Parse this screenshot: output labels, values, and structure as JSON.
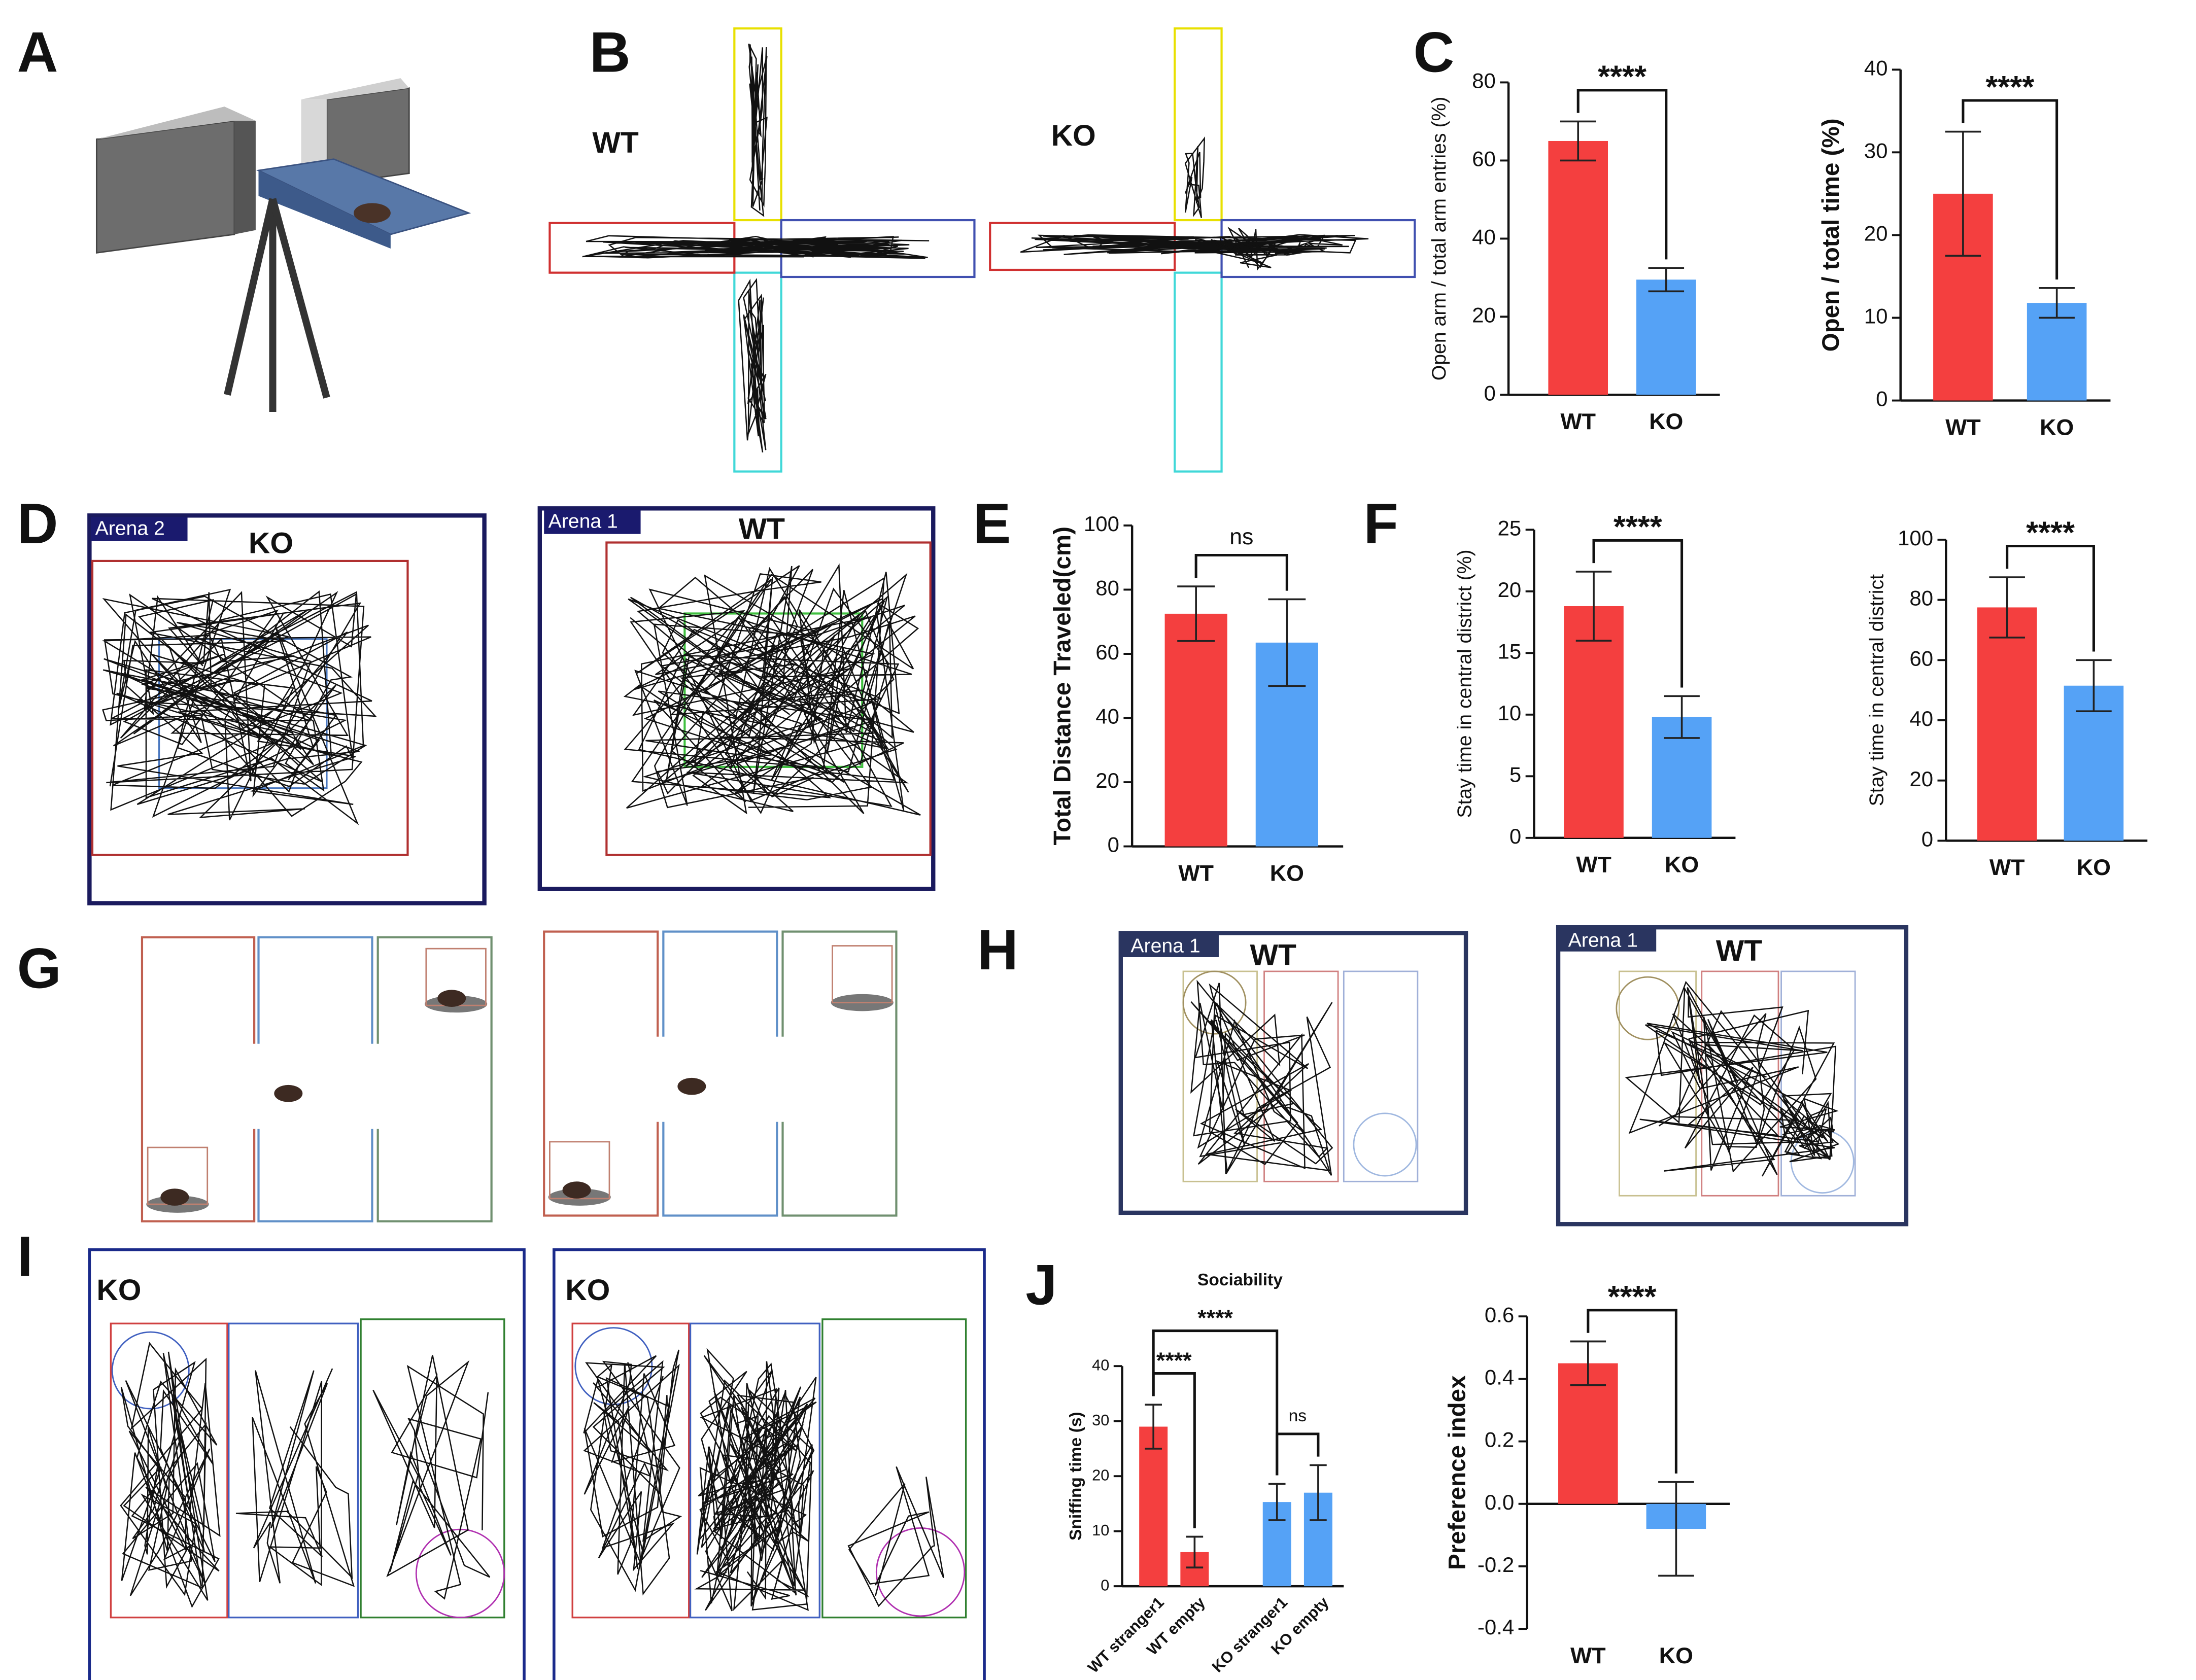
{
  "figure": {
    "letters": [
      "A",
      "B",
      "C",
      "D",
      "E",
      "F",
      "G",
      "H",
      "I",
      "J"
    ],
    "labels": [
      "WT",
      "KO",
      "Arena 2",
      "KO",
      "Arena 1",
      "WT",
      "Arena 1",
      "WT",
      "Arena 1",
      "WT",
      "KO",
      "KO"
    ]
  },
  "chart_data": [
    {
      "type": "bar",
      "y_label": "Open arm / total arm entries (%)",
      "categories": [
        "WT",
        "KO"
      ],
      "values": [
        65,
        29.5
      ],
      "errors": [
        5,
        3
      ],
      "colors": [
        "#f43f3f",
        "#55a2f6"
      ],
      "ylim": [
        0,
        80
      ],
      "yticks": [
        0,
        20,
        40,
        60,
        80
      ],
      "significance": [
        {
          "label": "****",
          "pair": [
            "WT",
            "KO"
          ]
        }
      ]
    },
    {
      "type": "bar",
      "y_label": "Open / total time (%)",
      "categories": [
        "WT",
        "KO"
      ],
      "values": [
        25,
        11.8
      ],
      "errors": [
        7.5,
        1.8
      ],
      "colors": [
        "#f43f3f",
        "#55a2f6"
      ],
      "ylim": [
        0,
        40
      ],
      "yticks": [
        0,
        10,
        20,
        30,
        40
      ],
      "significance": [
        {
          "label": "****",
          "pair": [
            "WT",
            "KO"
          ]
        }
      ]
    },
    {
      "type": "bar",
      "y_label": "Total Distance Traveled(cm)",
      "categories": [
        "WT",
        "KO"
      ],
      "values": [
        72.5,
        63.5
      ],
      "errors": [
        8.5,
        13.5
      ],
      "colors": [
        "#f43f3f",
        "#55a2f6"
      ],
      "ylim": [
        0,
        100
      ],
      "yticks": [
        0,
        20,
        40,
        60,
        80,
        100
      ],
      "significance": [
        {
          "label": "ns",
          "pair": [
            "WT",
            "KO"
          ]
        }
      ]
    },
    {
      "type": "bar",
      "y_label": "Stay time in central district (%)",
      "categories": [
        "WT",
        "KO"
      ],
      "values": [
        18.8,
        9.8
      ],
      "errors": [
        2.8,
        1.7
      ],
      "colors": [
        "#f43f3f",
        "#55a2f6"
      ],
      "ylim": [
        0,
        25
      ],
      "yticks": [
        0,
        5,
        10,
        15,
        20,
        25
      ],
      "significance": [
        {
          "label": "****",
          "pair": [
            "WT",
            "KO"
          ]
        }
      ]
    },
    {
      "type": "bar",
      "y_label": "Stay time in central district",
      "categories": [
        "WT",
        "KO"
      ],
      "values": [
        77.5,
        51.5
      ],
      "errors": [
        10,
        8.5
      ],
      "colors": [
        "#f43f3f",
        "#55a2f6"
      ],
      "ylim": [
        0,
        100
      ],
      "yticks": [
        0,
        20,
        40,
        60,
        80,
        100
      ],
      "significance": [
        {
          "label": "****",
          "pair": [
            "WT",
            "KO"
          ]
        }
      ]
    },
    {
      "type": "bar",
      "title": "Sociability",
      "y_label": "Sniffing time (s)",
      "categories": [
        "WT stranger1",
        "WT empty",
        "KO stranger1",
        "KO empty"
      ],
      "values": [
        29,
        6.2,
        15.3,
        17
      ],
      "errors": [
        4,
        2.8,
        3.3,
        5
      ],
      "colors": [
        "#f43f3f",
        "#f43f3f",
        "#55a2f6",
        "#55a2f6"
      ],
      "ylim": [
        0,
        40
      ],
      "yticks": [
        0,
        10,
        20,
        30,
        40
      ],
      "significance": [
        {
          "label": "****",
          "pair": [
            "WT stranger1",
            "WT empty"
          ]
        },
        {
          "label": "****",
          "pair": [
            "WT stranger1",
            "KO stranger1"
          ]
        },
        {
          "label": "ns",
          "pair": [
            "KO stranger1",
            "KO empty"
          ]
        }
      ]
    },
    {
      "type": "bar",
      "y_label": "Preference index",
      "categories": [
        "WT",
        "KO"
      ],
      "values": [
        0.45,
        -0.08
      ],
      "errors": [
        0.07,
        0.15
      ],
      "colors": [
        "#f43f3f",
        "#55a2f6"
      ],
      "ylim": [
        -0.4,
        0.6
      ],
      "yticks": [
        -0.4,
        -0.2,
        {
          "value": 0,
          "label": "0.0"
        },
        0.2,
        0.4,
        0.6
      ],
      "significance": [
        {
          "label": "****",
          "pair": [
            "WT",
            "KO"
          ]
        }
      ]
    }
  ]
}
